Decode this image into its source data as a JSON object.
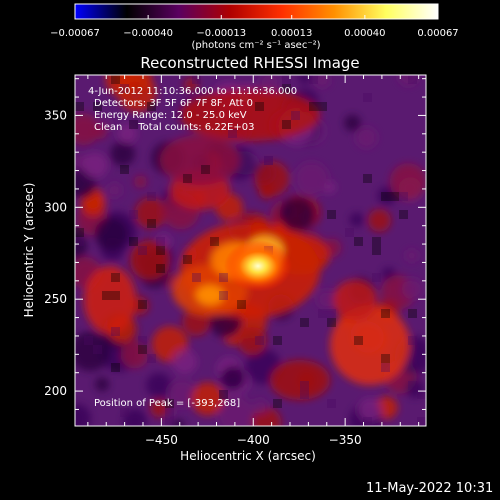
{
  "chart_data": {
    "type": "heatmap",
    "title": "Reconstructed RHESSI Image",
    "xlabel": "Heliocentric X (arcsec)",
    "ylabel": "Heliocentric Y (arcsec)",
    "xlim": [
      -497,
      -306
    ],
    "ylim": [
      181,
      372
    ],
    "x_ticks": [
      {
        "value": -450,
        "label": "−450"
      },
      {
        "value": -400,
        "label": "−400"
      },
      {
        "value": -350,
        "label": "−350"
      }
    ],
    "y_ticks": [
      {
        "value": 350,
        "label": "350"
      },
      {
        "value": 300,
        "label": "300"
      },
      {
        "value": 250,
        "label": "250"
      },
      {
        "value": 200,
        "label": "200"
      }
    ],
    "colorbar": {
      "range": [
        -0.00067,
        0.00067
      ],
      "ticks": [
        {
          "value": -0.00067,
          "label": "−0.00067"
        },
        {
          "value": -0.0004,
          "label": "−0.00040"
        },
        {
          "value": -0.00013,
          "label": "−0.00013"
        },
        {
          "value": 0.00013,
          "label": "0.00013"
        },
        {
          "value": 0.0004,
          "label": "0.00040"
        },
        {
          "value": 0.00067,
          "label": "0.00067"
        }
      ],
      "unit_label": "(photons cm⁻² s⁻¹ asec⁻²)",
      "colors": [
        "#0000ff",
        "#000000",
        "#5a0060",
        "#b00000",
        "#ff3000",
        "#ff9000",
        "#ffff60",
        "#ffffff"
      ]
    },
    "peak": {
      "x": -393,
      "y": 268
    },
    "annotations": {
      "time_range": "4-Jun-2012 11:10:36.000 to 11:16:36.000",
      "detectors": "Detectors: 3F 5F 6F 7F 8F, Att 0",
      "energy_range": "Energy Range: 12.0 - 25.0 keV",
      "clean_counts": "Clean     Total counts: 6.22E+03",
      "peak_position": "Position of Peak = [-393,268]"
    },
    "grid": false
  },
  "footer": {
    "timestamp": "11-May-2022 10:31"
  }
}
